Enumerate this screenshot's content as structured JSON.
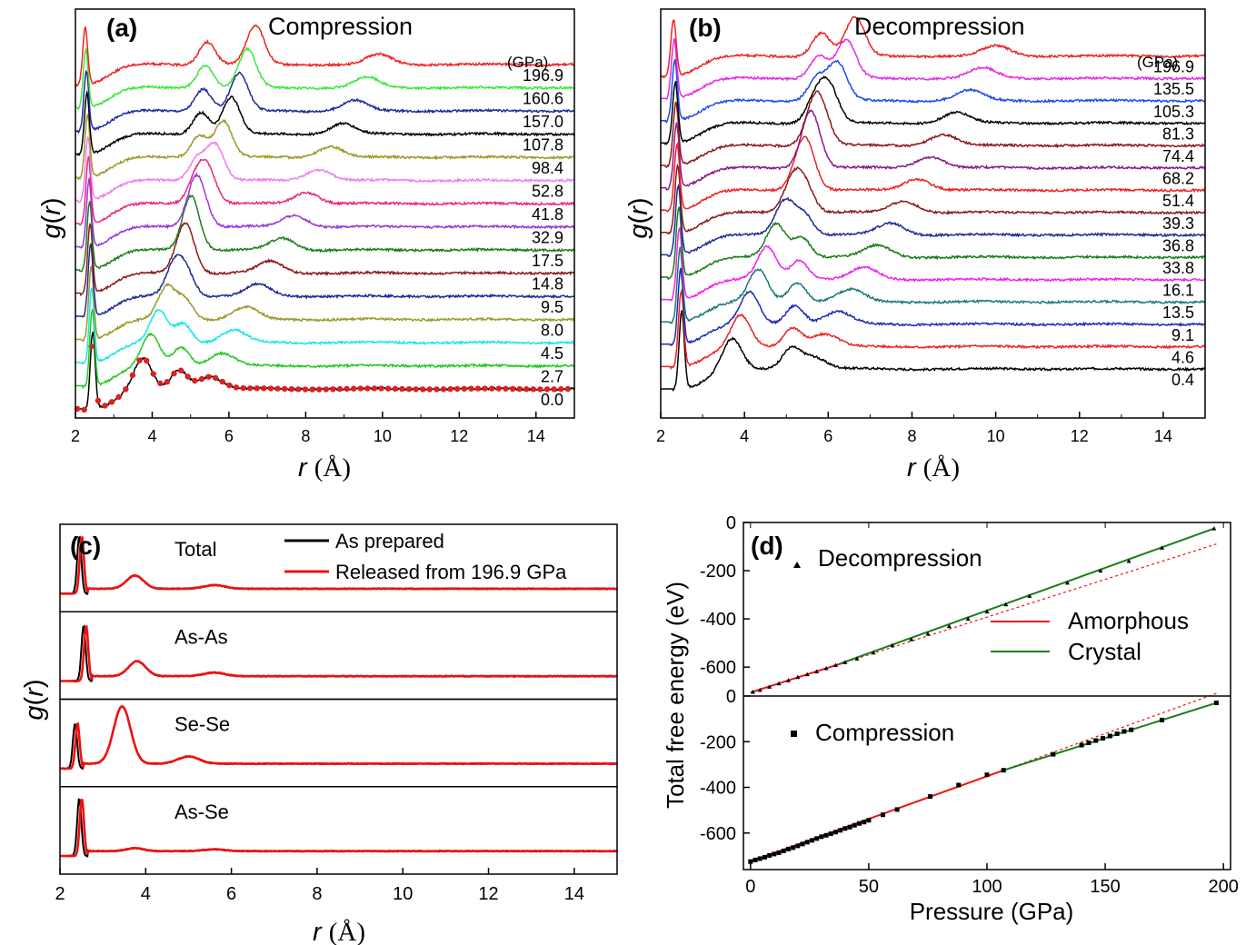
{
  "chart_data": [
    {
      "panel": "(a)",
      "type": "line",
      "title": "Compression",
      "xlabel_var": "r",
      "xlabel_unit": "(Å)",
      "ylabel_var": "g",
      "ylabel_arg": "r",
      "xlim": [
        2,
        15
      ],
      "xticks": [
        "2",
        "4",
        "6",
        "8",
        "10",
        "12",
        "14"
      ],
      "unit_label": "(GPa)",
      "curve_params": {
        "peak1": 2.45,
        "peak2": 3.75,
        "peak2_end": 4.7,
        "peak3": 5.5
      },
      "series": [
        {
          "name": "0.0",
          "color": "#000000",
          "markers": true
        },
        {
          "name": "2.7",
          "color": "#22c822"
        },
        {
          "name": "4.5",
          "color": "#19e6e6"
        },
        {
          "name": "8.0",
          "color": "#9a9a2a"
        },
        {
          "name": "9.5",
          "color": "#1f2a9a"
        },
        {
          "name": "14.8",
          "color": "#8b1a1a"
        },
        {
          "name": "17.5",
          "color": "#1b7d1b"
        },
        {
          "name": "32.9",
          "color": "#9a38d8"
        },
        {
          "name": "41.8",
          "color": "#e8287e"
        },
        {
          "name": "52.8",
          "color": "#f07ef0"
        },
        {
          "name": "98.4",
          "color": "#9a9a2a"
        },
        {
          "name": "107.8",
          "color": "#000000"
        },
        {
          "name": "157.0",
          "color": "#1f2a9a"
        },
        {
          "name": "160.6",
          "color": "#3ae83a"
        },
        {
          "name": "196.9",
          "color": "#ee2222"
        }
      ]
    },
    {
      "panel": "(b)",
      "type": "line",
      "title": "Decompression",
      "xlabel_var": "r",
      "xlabel_unit": "(Å)",
      "ylabel_var": "g",
      "ylabel_arg": "r",
      "xlim": [
        2,
        15
      ],
      "xticks": [
        "2",
        "4",
        "6",
        "8",
        "10",
        "12",
        "14"
      ],
      "unit_label": "(GPa)",
      "curve_params": {
        "peak1": 2.5,
        "peak2": 3.7,
        "peak2_end": 5.1,
        "peak3": 5.6
      },
      "series": [
        {
          "name": "0.4",
          "color": "#000000"
        },
        {
          "name": "4.6",
          "color": "#ee2222"
        },
        {
          "name": "9.1",
          "color": "#1f2ab4"
        },
        {
          "name": "13.5",
          "color": "#1a7a7a"
        },
        {
          "name": "16.1",
          "color": "#ee22ee"
        },
        {
          "name": "33.8",
          "color": "#1b7d1b"
        },
        {
          "name": "36.8",
          "color": "#1f2a9a"
        },
        {
          "name": "39.3",
          "color": "#8b1a1a"
        },
        {
          "name": "51.4",
          "color": "#ee2222"
        },
        {
          "name": "68.2",
          "color": "#8b1a8b"
        },
        {
          "name": "74.4",
          "color": "#8b1a1a"
        },
        {
          "name": "81.3",
          "color": "#000000"
        },
        {
          "name": "105.3",
          "color": "#1f4ae8"
        },
        {
          "name": "135.5",
          "color": "#e828e8"
        },
        {
          "name": "196.9",
          "color": "#ee2222"
        }
      ]
    },
    {
      "panel": "(c)",
      "type": "line",
      "xlabel_var": "r",
      "xlabel_unit": "(Å)",
      "ylabel_var": "g",
      "ylabel_arg": "r",
      "xlim": [
        2,
        15
      ],
      "xticks": [
        "2",
        "4",
        "6",
        "8",
        "10",
        "12",
        "14"
      ],
      "legend": [
        {
          "name": "As prepared",
          "color": "#000000"
        },
        {
          "name": "Released from 196.9 GPa",
          "color": "#ee1111"
        }
      ],
      "subpanels": [
        {
          "label": "Total",
          "peak1": 2.45,
          "h1": 0.95,
          "peak2": 3.75,
          "h2": 0.22,
          "peak3": 5.6,
          "h3": 0.06
        },
        {
          "label": "As-As",
          "peak1": 2.55,
          "h1": 0.92,
          "peak2": 3.8,
          "h2": 0.25,
          "peak3": 5.6,
          "h3": 0.06
        },
        {
          "label": "Se-Se",
          "peak1": 2.35,
          "h1": 0.75,
          "peak2": 3.45,
          "h2": 0.95,
          "peak3": 5.0,
          "h3": 0.12
        },
        {
          "label": "As-Se",
          "peak1": 2.45,
          "h1": 0.95,
          "peak2": 3.75,
          "h2": 0.05,
          "peak3": 5.6,
          "h3": 0.03
        }
      ]
    },
    {
      "panel": "(d)",
      "type": "line",
      "xlabel": "Pressure (GPa)",
      "ylabel": "Total free energy (eV)",
      "xlim": [
        -3,
        203
      ],
      "xticks": [
        "0",
        "50",
        "100",
        "150",
        "200"
      ],
      "legend": [
        {
          "name": "Amorphous",
          "color": "#ee1111"
        },
        {
          "name": "Crystal",
          "color": "#1b7d1b"
        }
      ],
      "top": {
        "label": "Decompression",
        "ylim": [
          -720,
          0
        ],
        "yticks": [
          "0",
          "-200",
          "-400",
          "-600"
        ],
        "amorphous": [
          [
            0,
            -705
          ],
          [
            40,
            -580
          ]
        ],
        "crystal": [
          [
            38,
            -585
          ],
          [
            196,
            -25
          ]
        ],
        "points": [
          [
            1,
            -703
          ],
          [
            4,
            -695
          ],
          [
            8,
            -682
          ],
          [
            12,
            -668
          ],
          [
            16,
            -655
          ],
          [
            20,
            -642
          ],
          [
            24,
            -630
          ],
          [
            28,
            -618
          ],
          [
            32,
            -605
          ],
          [
            36,
            -592
          ],
          [
            40,
            -580
          ],
          [
            45,
            -565
          ],
          [
            52,
            -540
          ],
          [
            60,
            -510
          ],
          [
            68,
            -485
          ],
          [
            75,
            -462
          ],
          [
            84,
            -430
          ],
          [
            92,
            -400
          ],
          [
            100,
            -370
          ],
          [
            108,
            -340
          ],
          [
            118,
            -305
          ],
          [
            134,
            -250
          ],
          [
            148,
            -200
          ],
          [
            160,
            -160
          ],
          [
            174,
            -105
          ],
          [
            196,
            -25
          ]
        ]
      },
      "bottom": {
        "label": "Compression",
        "ylim": [
          -760,
          0
        ],
        "yticks": [
          "0",
          "-200",
          "-400",
          "-600"
        ],
        "amorphous": [
          [
            0,
            -725
          ],
          [
            107,
            -325
          ]
        ],
        "crystal": [
          [
            107,
            -325
          ],
          [
            197,
            -30
          ]
        ],
        "points": [
          [
            0,
            -725
          ],
          [
            2,
            -718
          ],
          [
            4,
            -712
          ],
          [
            6,
            -706
          ],
          [
            8,
            -698
          ],
          [
            10,
            -692
          ],
          [
            12,
            -686
          ],
          [
            14,
            -678
          ],
          [
            16,
            -670
          ],
          [
            18,
            -664
          ],
          [
            20,
            -656
          ],
          [
            22,
            -648
          ],
          [
            24,
            -640
          ],
          [
            26,
            -632
          ],
          [
            28,
            -624
          ],
          [
            30,
            -616
          ],
          [
            32,
            -610
          ],
          [
            34,
            -603
          ],
          [
            36,
            -596
          ],
          [
            38,
            -588
          ],
          [
            40,
            -580
          ],
          [
            42,
            -574
          ],
          [
            44,
            -566
          ],
          [
            46,
            -558
          ],
          [
            48,
            -552
          ],
          [
            50,
            -544
          ],
          [
            56,
            -520
          ],
          [
            62,
            -497
          ],
          [
            76,
            -440
          ],
          [
            88,
            -390
          ],
          [
            100,
            -345
          ],
          [
            107,
            -325
          ],
          [
            128,
            -255
          ],
          [
            140,
            -215
          ],
          [
            143,
            -205
          ],
          [
            146,
            -195
          ],
          [
            149,
            -185
          ],
          [
            152,
            -175
          ],
          [
            155,
            -165
          ],
          [
            158,
            -155
          ],
          [
            161,
            -148
          ],
          [
            174,
            -105
          ],
          [
            197,
            -30
          ]
        ]
      }
    }
  ]
}
